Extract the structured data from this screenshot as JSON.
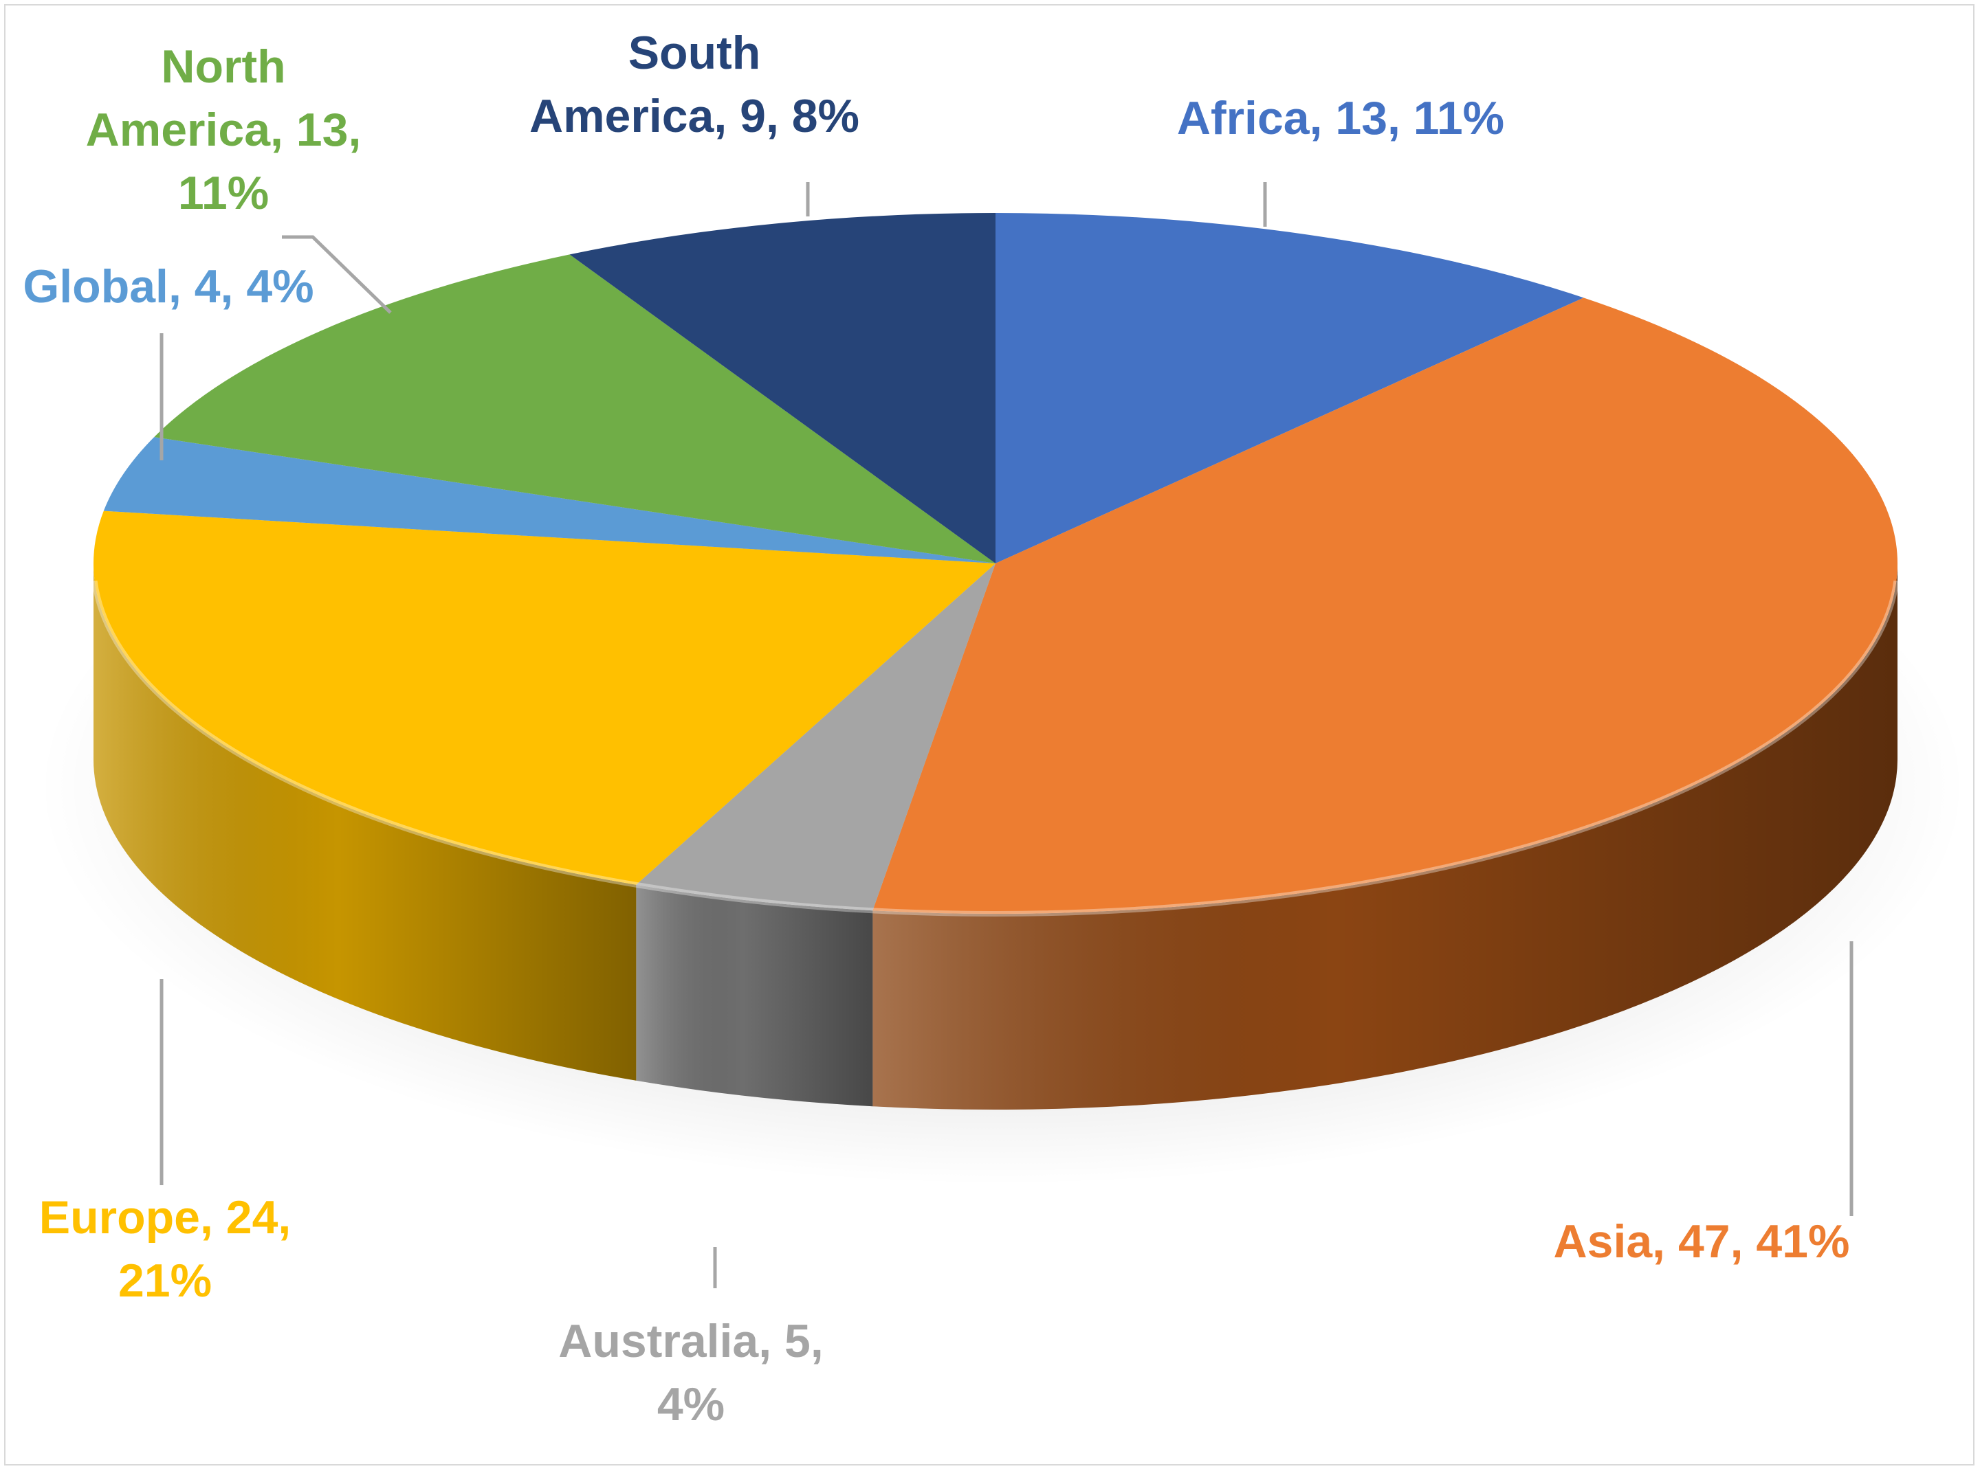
{
  "chart_data": {
    "type": "pie",
    "variant": "3d",
    "title": "",
    "legend": "none",
    "data_labels": "category, value, percentage",
    "slices": [
      {
        "name": "Africa",
        "value": 13,
        "percent": "11%",
        "label_lines": [
          "Africa, 13, 11%"
        ],
        "color": "#4472C4",
        "side_color": "#2F5597"
      },
      {
        "name": "Asia",
        "value": 47,
        "percent": "41%",
        "label_lines": [
          "Asia, 47, 41%"
        ],
        "color": "#ED7D31",
        "side_color": "#8B4513"
      },
      {
        "name": "Australia",
        "value": 5,
        "percent": "4%",
        "label_lines": [
          "Australia, 5,",
          "4%"
        ],
        "color": "#A5A5A5",
        "side_color": "#6E6E6E"
      },
      {
        "name": "Europe",
        "value": 24,
        "percent": "21%",
        "label_lines": [
          "Europe, 24,",
          "21%"
        ],
        "color": "#FFC000",
        "side_color": "#C69500"
      },
      {
        "name": "Global",
        "value": 4,
        "percent": "4%",
        "label_lines": [
          "Global, 4, 4%"
        ],
        "color": "#5B9BD5",
        "side_color": "#3F75A8"
      },
      {
        "name": "North America",
        "value": 13,
        "percent": "11%",
        "label_lines": [
          "North",
          "America, 13,",
          "11%"
        ],
        "color": "#70AD47",
        "side_color": "#4E7A31"
      },
      {
        "name": "South America",
        "value": 9,
        "percent": "8%",
        "label_lines": [
          "South",
          "America, 9, 8%"
        ],
        "color": "#264478",
        "side_color": "#1A2F55"
      }
    ]
  }
}
